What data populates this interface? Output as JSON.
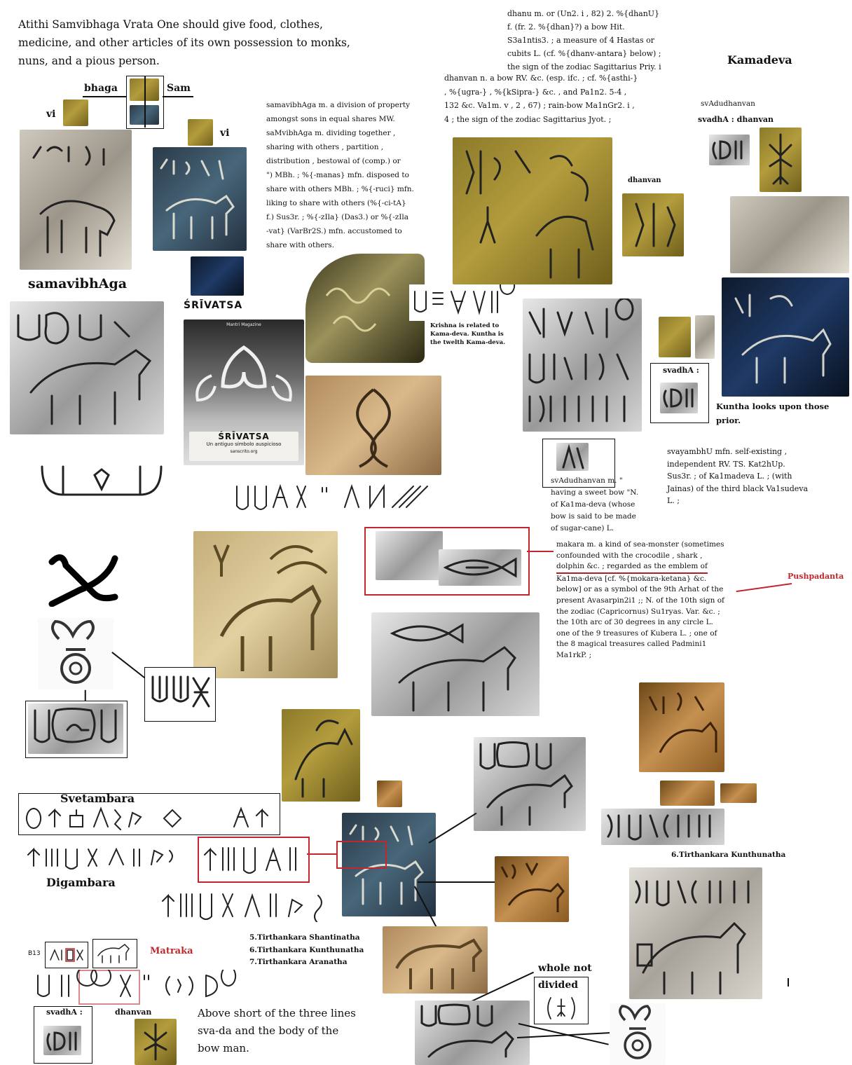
{
  "intro_text": [
    "Atithi Samvibhaga Vrata One should give food, clothes,",
    "medicine, and other articles of its own possession to monks,",
    "nuns, and a pious person."
  ],
  "labels": {
    "bhaga": "bhaga",
    "sam": "Sam",
    "vi_1": "vi",
    "vi_2": "vi",
    "samavibhaga": "samavibhAga",
    "srivatsa": "ŚRĪVATSA",
    "kamadeva": "Kamadeva",
    "svadudhanvan_top": "svAdudhanvan",
    "svadha_dhanvan_top": "svadhA : dhanvan",
    "dhanvan_mid": "dhanvan",
    "svadha_mid": "svadhA :",
    "kuntha_text": [
      "Kuntha looks upon those",
      "prior."
    ],
    "svetambara": "Svetambara",
    "digambara": "Digambara",
    "matraka": "Matraka",
    "pushpadanta": "Pushpadanta",
    "tirthankara_kunthunatha": "6.Tirthankara Kunthunatha",
    "whole_not": "whole not",
    "divided": "divided",
    "svadha_bottom": "svadhA :",
    "dhanvan_bottom": "dhanvan",
    "b13": "B13"
  },
  "srivatsa_poster": {
    "header": "Mantri Magazine",
    "title": "ŚRĪVATSA",
    "subtitle": "Un antiguo símbolo auspicioso",
    "site": "sanscrito.org"
  },
  "krishna_note": [
    "Krishna is related to",
    "Kama-deva. Kuntha is",
    "the twelth Kama-deva."
  ],
  "samavibhaga_dict": [
    "samavibhAga m. a division of property",
    "amongst sons in equal shares MW.",
    "saMvibhAga m. dividing together ,",
    "sharing with others , partition ,",
    "distribution , bestowal of (comp.) or",
    "\") MBh. ; %{-manas} mfn. disposed to",
    "share with others MBh. ; %{-ruci} mfn.",
    "liking to share with others (%{-ci-tA}",
    "f.) Sus3r. ; %{-zIla} (Das3.) or %{-zIla",
    "-vat} (VarBr2S.) mfn. accustomed to",
    "share with others."
  ],
  "dhanu_dict": [
    "dhanu m. or (Un2. i , 82) 2. %{dhanU}",
    "f. (fr. 2. %{dhan}?) a bow Hit.",
    "S3a1ntis3. ; a measure of 4 Hastas or",
    "cubits L. (cf. %{dhanv-antara} below) ;",
    "the sign of the zodiac Sagittarius Priy. i"
  ],
  "dhanvan_dict": [
    "dhanvan n. a bow RV. &c. (esp. ifc. ; cf. %{asthi-}",
    ", %{ugra-} , %{kSipra-} &c. , and Pa1n2. 5-4 ,",
    "132 &c. Va1m. v , 2 , 67) ; rain-bow Ma1nGr2. i ,",
    "4 ; the sign of the zodiac Sagittarius Jyot. ;"
  ],
  "svayambhu_dict": [
    "svayambhU mfn. self-existing ,",
    "independent RV. TS. Kat2hUp.",
    "Sus3r. ; of Ka1madeva L.  ; (with",
    "Jainas) of the third black Va1sudeva",
    "L. ;"
  ],
  "svadudhanvan_dict": {
    "caption": "svAdudhanvan",
    "lines": [
      "m. \"",
      "having a sweet bow \"N.",
      "of Ka1ma-deva (whose",
      "bow is said to be made",
      "of sugar-cane) L."
    ]
  },
  "makara_dict": [
    "makara m. a kind of sea-monster (sometimes",
    "confounded with the crocodile , shark ,",
    "dolphin &c. ; regarded as the emblem of",
    "Ka1ma-deva [cf. %{mokara-ketana} &c.",
    "below] or as a symbol of the 9th Arhat of the",
    "present Avasarpin2i1 ;; N. of the 10th sign of",
    "the zodiac (Capricornus) Su1ryas. Var. &c. ;",
    "the 10th arc of 30 degrees in any circle L.",
    "one of the 9 treasures of Kubera L. ; one of",
    "the 8 magical treasures called Padmini1",
    "Ma1rkP. ;"
  ],
  "tirthankara_list": [
    "5.Tirthankara Shantinatha",
    "6.Tirthankara Kunthunatha",
    "7.Tirthankara Aranatha"
  ],
  "bottom_text": [
    "Above short of the three lines",
    "sva-da and the body of the",
    "bow man."
  ],
  "colors": {
    "accent_red": "#c0282d",
    "text": "#111111"
  }
}
